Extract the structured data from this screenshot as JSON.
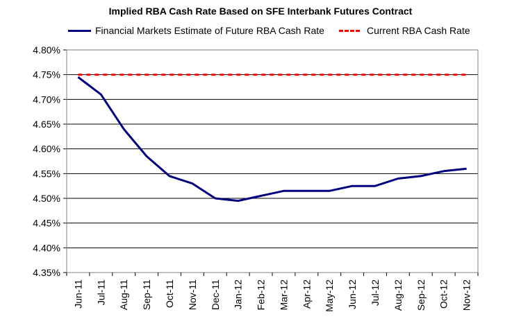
{
  "chart_data": {
    "type": "line",
    "title": "Implied RBA Cash Rate Based on SFE Interbank Futures Contract",
    "categories": [
      "Jun-11",
      "Jul-11",
      "Aug-11",
      "Sep-11",
      "Oct-11",
      "Nov-11",
      "Dec-11",
      "Jan-12",
      "Feb-12",
      "Mar-12",
      "Apr-12",
      "May-12",
      "Jun-12",
      "Jul-12",
      "Aug-12",
      "Sep-12",
      "Oct-12",
      "Nov-12"
    ],
    "series": [
      {
        "name": "Financial Markets Estimate of Future RBA Cash Rate",
        "color": "#000080",
        "style": "solid",
        "values": [
          4.745,
          4.71,
          4.64,
          4.585,
          4.545,
          4.53,
          4.5,
          4.495,
          4.505,
          4.515,
          4.515,
          4.515,
          4.525,
          4.525,
          4.54,
          4.545,
          4.555,
          4.56
        ]
      },
      {
        "name": "Current RBA Cash Rate",
        "color": "#ff0000",
        "style": "dashed",
        "values": [
          4.75,
          4.75,
          4.75,
          4.75,
          4.75,
          4.75,
          4.75,
          4.75,
          4.75,
          4.75,
          4.75,
          4.75,
          4.75,
          4.75,
          4.75,
          4.75,
          4.75,
          4.75
        ]
      }
    ],
    "ylim": [
      4.35,
      4.8
    ],
    "yticks": [
      4.35,
      4.4,
      4.45,
      4.5,
      4.55,
      4.6,
      4.65,
      4.7,
      4.75,
      4.8
    ],
    "ytick_labels": [
      "4.35%",
      "4.40%",
      "4.45%",
      "4.50%",
      "4.55%",
      "4.60%",
      "4.65%",
      "4.70%",
      "4.75%",
      "4.80%"
    ],
    "xlabel": "",
    "ylabel": "",
    "grid": true,
    "legend_position": "top"
  }
}
